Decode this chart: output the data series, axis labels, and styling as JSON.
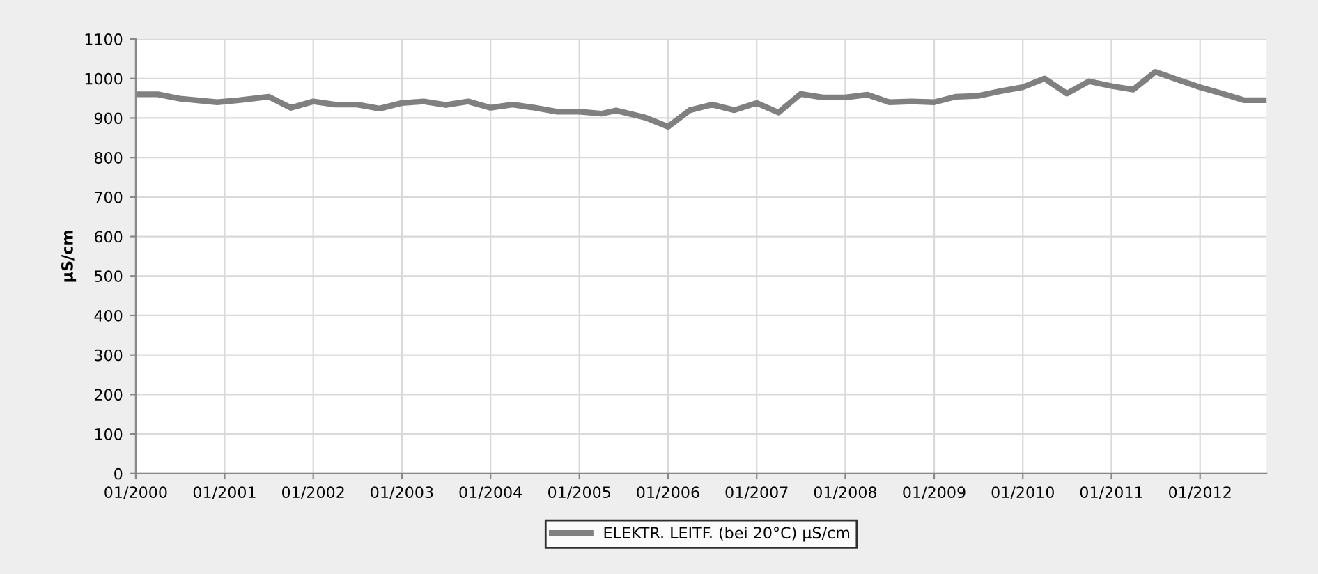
{
  "chart_data": {
    "type": "line",
    "ylabel": "µS/cm",
    "xlim": [
      "2000-01",
      "2012-10"
    ],
    "ylim": [
      0,
      1100
    ],
    "yticks": [
      0,
      100,
      200,
      300,
      400,
      500,
      600,
      700,
      800,
      900,
      1000,
      1100
    ],
    "xticks": [
      {
        "value": "2000-01",
        "label": "01/2000"
      },
      {
        "value": "2001-01",
        "label": "01/2001"
      },
      {
        "value": "2002-01",
        "label": "01/2002"
      },
      {
        "value": "2003-01",
        "label": "01/2003"
      },
      {
        "value": "2004-01",
        "label": "01/2004"
      },
      {
        "value": "2005-01",
        "label": "01/2005"
      },
      {
        "value": "2006-01",
        "label": "01/2006"
      },
      {
        "value": "2007-01",
        "label": "01/2007"
      },
      {
        "value": "2008-01",
        "label": "01/2008"
      },
      {
        "value": "2009-01",
        "label": "01/2009"
      },
      {
        "value": "2010-01",
        "label": "01/2010"
      },
      {
        "value": "2011-01",
        "label": "01/2011"
      },
      {
        "value": "2012-01",
        "label": "01/2012"
      }
    ],
    "x": [
      "2000-01",
      "2000-04",
      "2000-07",
      "2000-12",
      "2001-03",
      "2001-07",
      "2001-10",
      "2002-01",
      "2002-04",
      "2002-07",
      "2002-10",
      "2003-01",
      "2003-04",
      "2003-07",
      "2003-10",
      "2004-01",
      "2004-04",
      "2004-07",
      "2004-10",
      "2005-01",
      "2005-04",
      "2005-06",
      "2005-10",
      "2006-01",
      "2006-04",
      "2006-07",
      "2006-10",
      "2007-01",
      "2007-04",
      "2007-07",
      "2007-10",
      "2008-01",
      "2008-04",
      "2008-07",
      "2008-10",
      "2009-01",
      "2009-04",
      "2009-07",
      "2009-10",
      "2010-01",
      "2010-04",
      "2010-07",
      "2010-10",
      "2011-01",
      "2011-04",
      "2011-07",
      "2011-10",
      "2012-01",
      "2012-04",
      "2012-07",
      "2012-10"
    ],
    "series": [
      {
        "name": "ELEKTR. LEITF. (bei 20°C) µS/cm",
        "color": "#808080",
        "values": [
          960,
          960,
          949,
          940,
          945,
          954,
          926,
          942,
          934,
          934,
          924,
          938,
          942,
          933,
          942,
          926,
          934,
          926,
          916,
          916,
          911,
          919,
          901,
          878,
          920,
          934,
          920,
          938,
          914,
          961,
          952,
          952,
          959,
          940,
          942,
          940,
          954,
          956,
          968,
          978,
          1000,
          962,
          993,
          981,
          972,
          1017,
          997,
          978,
          962,
          945,
          945
        ]
      }
    ],
    "grid": true,
    "legend": "bottom",
    "marker": "none",
    "line_style": "solid"
  }
}
